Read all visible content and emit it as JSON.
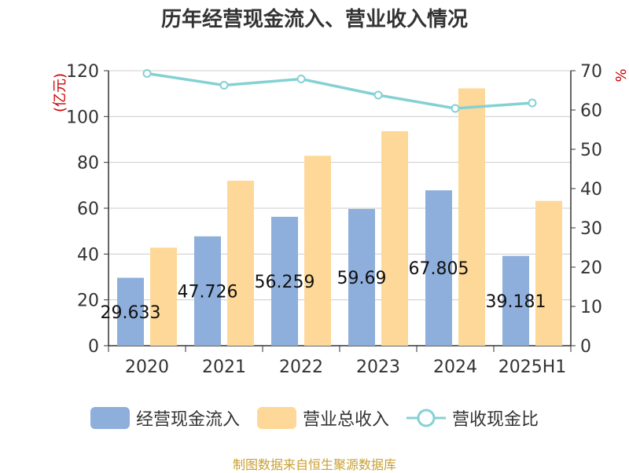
{
  "chart_data": {
    "type": "bar",
    "title": "历年经营现金流入、营业收入情况",
    "categories": [
      "2020",
      "2021",
      "2022",
      "2023",
      "2024",
      "2025H1"
    ],
    "ylabel_left": "(亿元)",
    "ylabel_right": "%",
    "ylim_left": [
      0,
      120
    ],
    "ylim_right": [
      0,
      70
    ],
    "yticks_left": [
      0,
      20,
      40,
      60,
      80,
      100,
      120
    ],
    "yticks_right": [
      0,
      10,
      20,
      30,
      40,
      50,
      60,
      70
    ],
    "grid": true,
    "legend_position": "bottom",
    "series": [
      {
        "name": "经营现金流入",
        "kind": "bar",
        "axis": "left",
        "color": "#8eaedb",
        "values": [
          29.633,
          47.726,
          56.259,
          59.69,
          67.805,
          39.181
        ],
        "labels": [
          "29.633",
          "47.726",
          "56.259",
          "59.69",
          "67.805",
          "39.181"
        ]
      },
      {
        "name": "营业总收入",
        "kind": "bar",
        "axis": "left",
        "color": "#fed898",
        "values": [
          42.8,
          72.0,
          82.9,
          93.6,
          112.3,
          63.2
        ]
      },
      {
        "name": "营收现金比",
        "kind": "line",
        "axis": "right",
        "color": "#84d1d4",
        "values": [
          69.3,
          66.3,
          67.9,
          63.8,
          60.4,
          61.8
        ]
      }
    ]
  },
  "legend": [
    {
      "label": "经营现金流入",
      "color": "#8eaedb",
      "kind": "bar"
    },
    {
      "label": "营业总收入",
      "color": "#fed898",
      "kind": "bar"
    },
    {
      "label": "营收现金比",
      "color": "#84d1d4",
      "kind": "line"
    }
  ],
  "source": "制图数据来自恒生聚源数据库"
}
